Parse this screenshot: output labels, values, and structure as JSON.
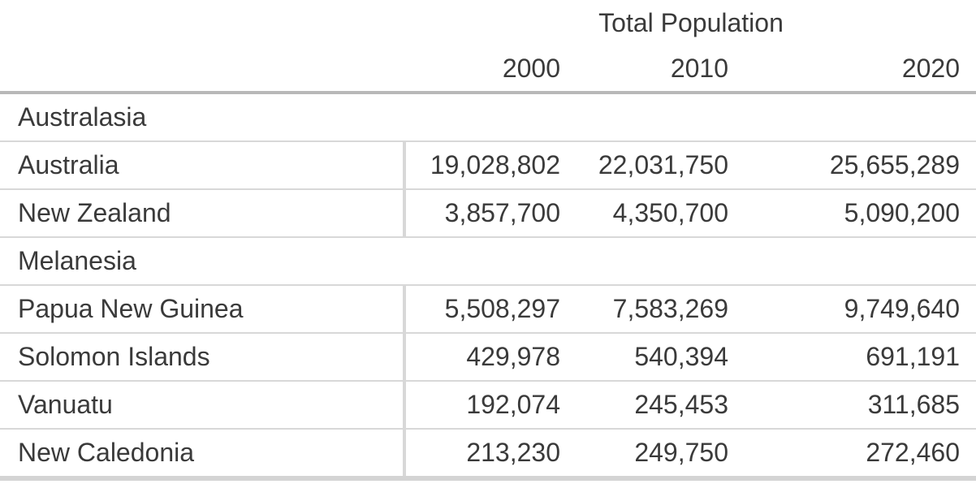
{
  "chart_data": {
    "type": "table",
    "title": "Total Population",
    "year_columns": [
      "2000",
      "2010",
      "2020"
    ],
    "groups": [
      {
        "label": "Australasia",
        "rows": [
          {
            "name": "Australia",
            "values": [
              "19,028,802",
              "22,031,750",
              "25,655,289"
            ]
          },
          {
            "name": "New Zealand",
            "values": [
              "3,857,700",
              "4,350,700",
              "5,090,200"
            ]
          }
        ]
      },
      {
        "label": "Melanesia",
        "rows": [
          {
            "name": "Papua New Guinea",
            "values": [
              "5,508,297",
              "7,583,269",
              "9,749,640"
            ]
          },
          {
            "name": "Solomon Islands",
            "values": [
              "429,978",
              "540,394",
              "691,191"
            ]
          },
          {
            "name": "Vanuatu",
            "values": [
              "192,074",
              "245,453",
              "311,685"
            ]
          },
          {
            "name": "New Caledonia",
            "values": [
              "213,230",
              "249,750",
              "272,460"
            ]
          }
        ]
      }
    ],
    "layout": {
      "grid": "horizontal separators between all rows; vertical divider after name column on country rows only",
      "value_alignment": "right"
    }
  },
  "colors": {
    "text": "#3a3a3a",
    "top_border": "#b8b8b8",
    "row_separator": "#d8d8d8",
    "bottom_border": "#d4d4d4",
    "background": "#ffffff"
  }
}
